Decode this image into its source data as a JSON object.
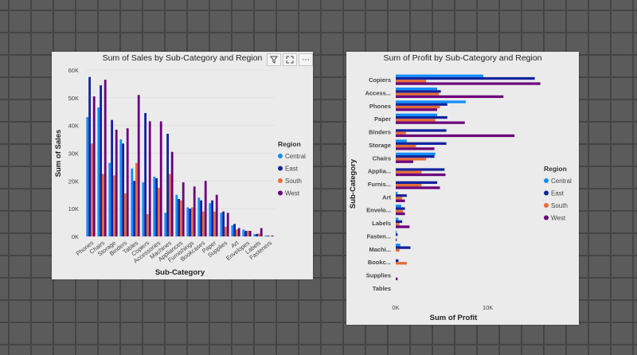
{
  "chart_data": [
    {
      "type": "bar",
      "orientation": "vertical",
      "title": "Sum of Sales by Sub-Category and Region",
      "xlabel": "Sub-Category",
      "ylabel": "Sum of Sales",
      "ylim": [
        0,
        60000
      ],
      "yticks": [
        {
          "v": 0,
          "label": "0K"
        },
        {
          "v": 10000,
          "label": "10K"
        },
        {
          "v": 20000,
          "label": "20K"
        },
        {
          "v": 30000,
          "label": "30K"
        },
        {
          "v": 40000,
          "label": "40K"
        },
        {
          "v": 50000,
          "label": "50K"
        },
        {
          "v": 60000,
          "label": "60K"
        }
      ],
      "categories": [
        "Phones",
        "Chairs",
        "Storage",
        "Binders",
        "Tables",
        "Copiers",
        "Accessories",
        "Machines",
        "Appliances",
        "Furnishings",
        "Bookcases",
        "Paper",
        "Supplies",
        "Art",
        "Envelopes",
        "Labels",
        "Fasteners"
      ],
      "series": [
        {
          "name": "Central",
          "values": [
            43000,
            46500,
            26500,
            35000,
            24500,
            19500,
            21500,
            8500,
            15000,
            10500,
            14000,
            12000,
            8500,
            4000,
            2500,
            800,
            300
          ]
        },
        {
          "name": "East",
          "values": [
            57500,
            54500,
            42000,
            33500,
            20000,
            44500,
            21000,
            37000,
            13500,
            10000,
            13000,
            13000,
            9000,
            4500,
            2000,
            900,
            250
          ]
        },
        {
          "name": "South",
          "values": [
            33500,
            22500,
            22000,
            15500,
            26500,
            8000,
            17500,
            22500,
            13000,
            10500,
            9000,
            9000,
            3500,
            2500,
            2000,
            1000,
            150
          ]
        },
        {
          "name": "West",
          "values": [
            50500,
            56500,
            38500,
            39000,
            51000,
            41500,
            41500,
            30500,
            19500,
            18000,
            20000,
            15000,
            8500,
            3000,
            2000,
            3000,
            300
          ]
        }
      ],
      "legend": {
        "title": "Region",
        "position": "right"
      }
    },
    {
      "type": "bar",
      "orientation": "horizontal",
      "title": "Sum of Profit by Sub-Category and Region",
      "xlabel": "Sum of Profit",
      "ylabel": "Sub-Category",
      "xlim": [
        0,
        16000
      ],
      "xticks": [
        {
          "v": 0,
          "label": "0K"
        },
        {
          "v": 10000,
          "label": "10K"
        }
      ],
      "categories": [
        "Copiers",
        "Access...",
        "Phones",
        "Paper",
        "Binders",
        "Storage",
        "Chairs",
        "Applia...",
        "Furnis...",
        "Art",
        "Envelo...",
        "Labels",
        "Fasten...",
        "Machi...",
        "Bookc...",
        "Supplies",
        "Tables"
      ],
      "series": [
        {
          "name": "Central",
          "values": [
            9500,
            4500,
            7600,
            4500,
            0,
            1200,
            4300,
            0,
            0,
            200,
            600,
            300,
            100,
            500,
            0,
            0,
            0
          ]
        },
        {
          "name": "East",
          "values": [
            15100,
            4900,
            5600,
            5600,
            5500,
            5500,
            4200,
            5300,
            4500,
            1200,
            1000,
            700,
            200,
            1600,
            300,
            0,
            0
          ]
        },
        {
          "name": "South",
          "values": [
            3300,
            4700,
            4800,
            4300,
            1100,
            2200,
            3300,
            2800,
            2800,
            700,
            800,
            400,
            0,
            400,
            1200,
            0,
            0
          ]
        },
        {
          "name": "West",
          "values": [
            15700,
            11700,
            4500,
            7500,
            12900,
            4200,
            1900,
            5400,
            4800,
            1000,
            1000,
            1500,
            100,
            0,
            0,
            200,
            0
          ]
        }
      ],
      "legend": {
        "title": "Region",
        "position": "right"
      }
    }
  ],
  "colors": {
    "Central": "#118dff",
    "East": "#12239e",
    "South": "#e66c37",
    "West": "#6b007b"
  },
  "toolbar": {
    "icons": [
      "filter-icon",
      "focus-mode-icon",
      "more-options-icon"
    ],
    "more_glyph": "⋯"
  }
}
